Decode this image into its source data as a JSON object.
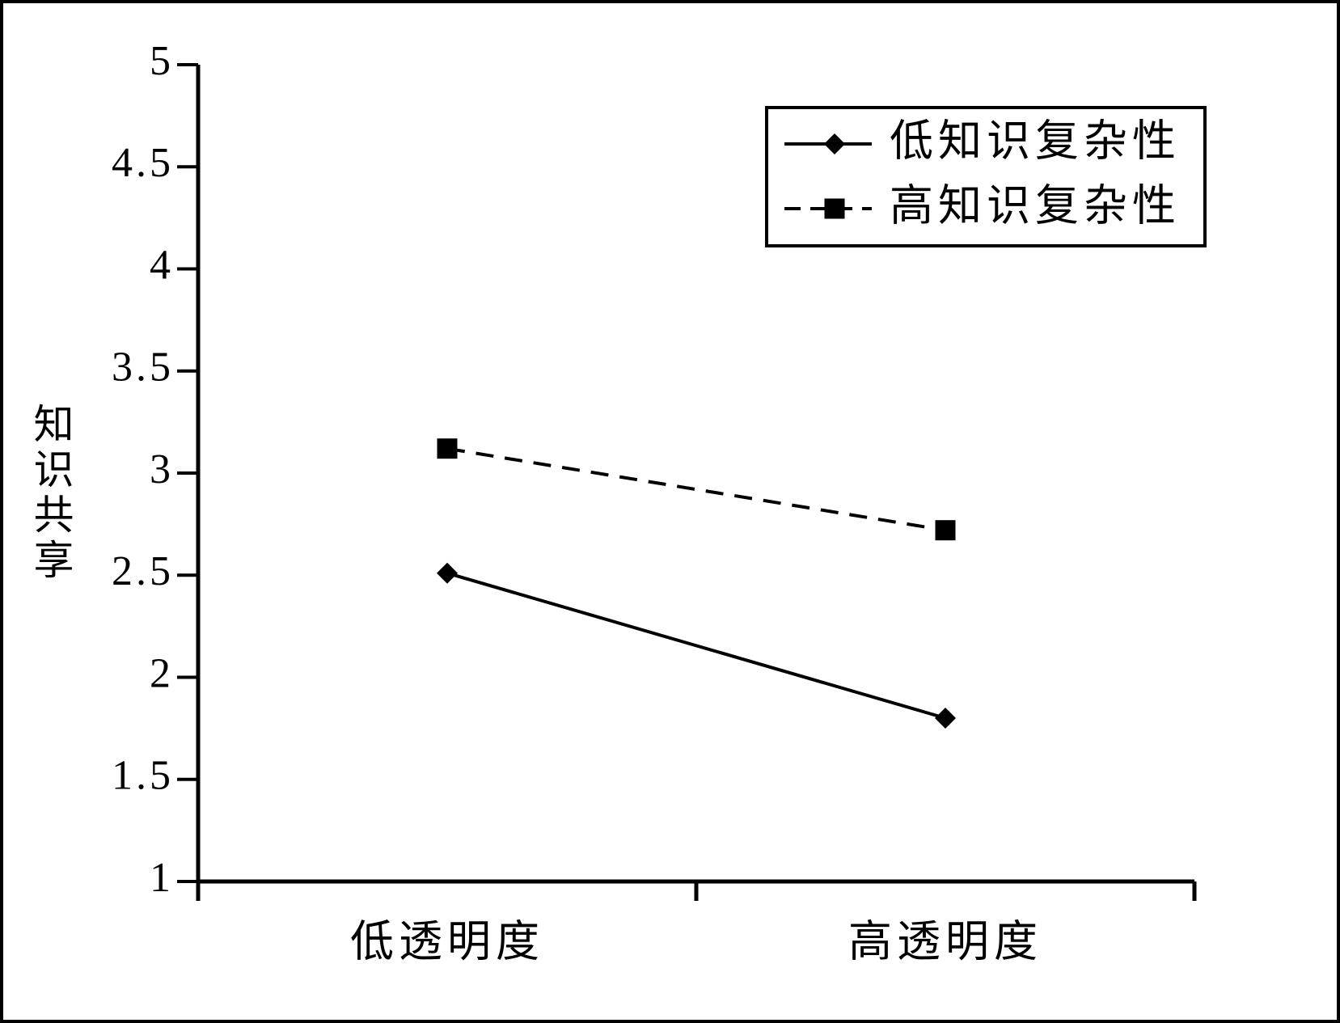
{
  "chart_data": {
    "type": "line",
    "y_label": "知识共享",
    "categories": [
      "低透明度",
      "高透明度"
    ],
    "series": [
      {
        "name": "低知识复杂性",
        "color": "#000000",
        "linestyle": "solid",
        "marker": "diamond",
        "values": [
          2.51,
          1.8
        ]
      },
      {
        "name": "高知识复杂性",
        "color": "#000000",
        "linestyle": "dashed",
        "marker": "square",
        "values": [
          3.12,
          2.72
        ]
      }
    ],
    "ylim": [
      1,
      5
    ],
    "yticks": [
      1,
      1.5,
      2,
      2.5,
      3,
      3.5,
      4,
      4.5,
      5
    ],
    "grid": false,
    "legend": "upper right"
  }
}
